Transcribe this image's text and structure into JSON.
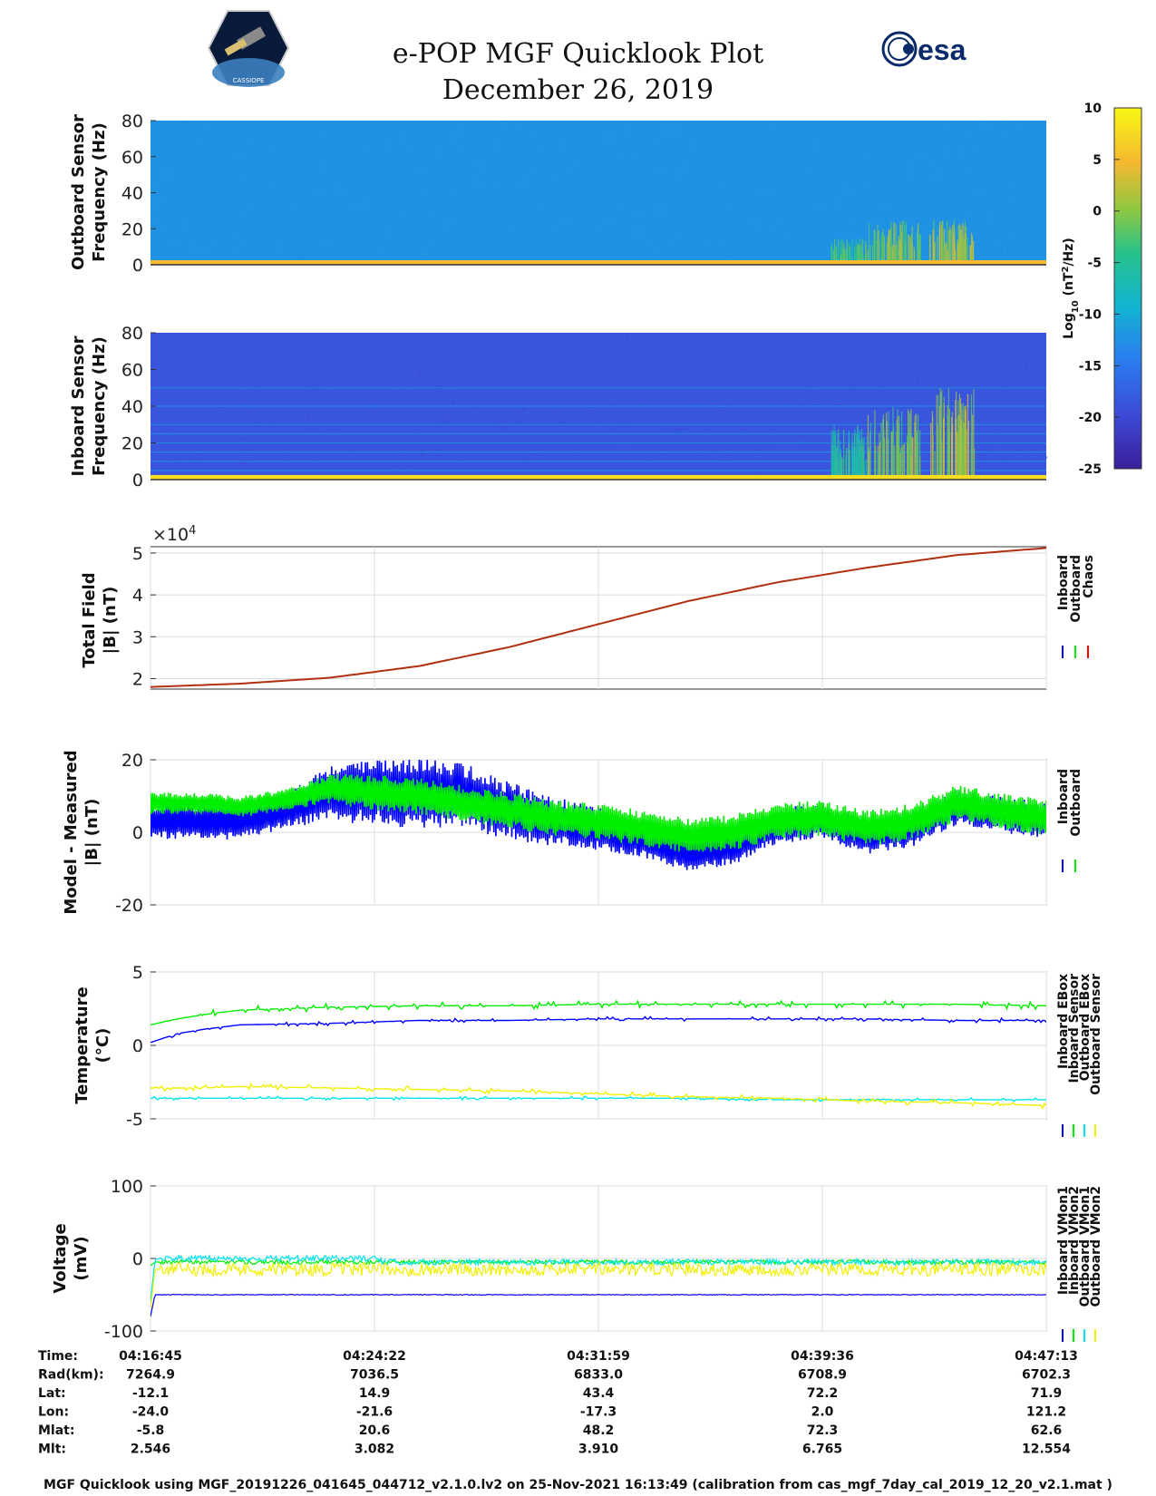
{
  "header": {
    "title": "e-POP MGF Quicklook Plot",
    "date": "December 26, 2019",
    "esa_logo_text": "esa",
    "cassiope_logo_text": "CASSIOPE"
  },
  "colors": {
    "inboard": "#0000ff",
    "outboard": "#00ee00",
    "chaos": "#ff0000",
    "model_line": "#b03010",
    "cyan": "#00e5ee",
    "yellow": "#f0f000",
    "spec_bg_outboard": "#1f78e0",
    "spec_bg_inboard": "#3440c8"
  },
  "colorbar": {
    "label_base": "Log",
    "label_sub": "10",
    "label_unit": " (nT",
    "label_sup": "2",
    "label_end": "/Hz)",
    "ticks": [
      "10",
      "5",
      "0",
      "-5",
      "-10",
      "-15",
      "-20",
      "-25"
    ],
    "range": [
      -25,
      10
    ]
  },
  "chart_data": [
    {
      "type": "heatmap",
      "name": "outboard-spectrogram",
      "ylabel_line1": "Outboard Sensor",
      "ylabel_line2": "Frequency (Hz)",
      "ylim": [
        0,
        80
      ],
      "yticks": [
        "80",
        "60",
        "40",
        "20",
        "0"
      ],
      "background_level": -13,
      "band_level_0_2hz": 5,
      "bursts": [
        {
          "t_frac_start": 0.76,
          "t_frac_end": 0.8,
          "fmax_hz": 15,
          "level": 0
        },
        {
          "t_frac_start": 0.8,
          "t_frac_end": 0.86,
          "fmax_hz": 25,
          "level": 3
        },
        {
          "t_frac_start": 0.87,
          "t_frac_end": 0.92,
          "fmax_hz": 25,
          "level": 5
        }
      ]
    },
    {
      "type": "heatmap",
      "name": "inboard-spectrogram",
      "ylabel_line1": "Inboard Sensor",
      "ylabel_line2": "Frequency (Hz)",
      "ylim": [
        0,
        80
      ],
      "yticks": [
        "80",
        "60",
        "40",
        "20",
        "0"
      ],
      "background_level": -19,
      "band_level_0_2hz": 8,
      "harmonic_lines_hz": [
        5,
        10,
        15,
        20,
        25,
        30,
        40,
        50
      ],
      "bursts": [
        {
          "t_frac_start": 0.76,
          "t_frac_end": 0.8,
          "fmax_hz": 30,
          "level": -2
        },
        {
          "t_frac_start": 0.8,
          "t_frac_end": 0.86,
          "fmax_hz": 40,
          "level": 3
        },
        {
          "t_frac_start": 0.87,
          "t_frac_end": 0.92,
          "fmax_hz": 50,
          "level": 5
        }
      ]
    },
    {
      "type": "line",
      "name": "total-field",
      "ylabel_line1": "Total Field",
      "ylabel_line2": "|B| (nT)",
      "scale_label": "×10",
      "scale_exp": "4",
      "ylim": [
        1.75,
        5.15
      ],
      "yticks": [
        "5",
        "4",
        "3",
        "2"
      ],
      "x_frac": [
        0,
        0.1,
        0.2,
        0.3,
        0.4,
        0.5,
        0.6,
        0.7,
        0.8,
        0.9,
        1.0
      ],
      "series": [
        {
          "name": "Chaos",
          "values": [
            1.8,
            1.88,
            2.02,
            2.3,
            2.75,
            3.3,
            3.85,
            4.3,
            4.65,
            4.95,
            5.12
          ]
        }
      ],
      "legend": [
        "Inboard",
        "Outboard",
        "Chaos"
      ]
    },
    {
      "type": "line",
      "name": "model-minus-measured",
      "ylabel_line1": "Model - Measured",
      "ylabel_line2": "|B| (nT)",
      "ylim": [
        -20,
        20
      ],
      "yticks": [
        "20",
        "0",
        "-20"
      ],
      "x_frac": [
        0,
        0.05,
        0.1,
        0.15,
        0.2,
        0.25,
        0.3,
        0.35,
        0.4,
        0.45,
        0.5,
        0.55,
        0.6,
        0.65,
        0.7,
        0.75,
        0.8,
        0.85,
        0.9,
        0.95,
        1.0
      ],
      "series": [
        {
          "name": "Inboard",
          "values": [
            3,
            3,
            3,
            6,
            11,
            11,
            11,
            10,
            6,
            3,
            1,
            -2,
            -6,
            -4,
            2,
            3,
            -1,
            1,
            7,
            5,
            3
          ]
        },
        {
          "name": "Outboard",
          "values": [
            8,
            8,
            7,
            9,
            12,
            11,
            10,
            8,
            6,
            4,
            3,
            1,
            -1,
            0,
            3,
            4,
            1,
            3,
            8,
            6,
            4
          ]
        }
      ],
      "inboard_amplitude": [
        5,
        5,
        5,
        5,
        8,
        9,
        10,
        9,
        8,
        7,
        6,
        5,
        5,
        5,
        5,
        5,
        5,
        5,
        5,
        5,
        5
      ],
      "outboard_amplitude": [
        3,
        3,
        3,
        3,
        4,
        5,
        5,
        5,
        5,
        5,
        5,
        5,
        5,
        5,
        5,
        5,
        5,
        5,
        5,
        5,
        5
      ],
      "legend": [
        "Inboard",
        "Outboard"
      ]
    },
    {
      "type": "line",
      "name": "temperature",
      "ylabel_line1": "Temperature",
      "ylabel_line2": "(°C)",
      "ylim": [
        -5,
        5
      ],
      "yticks": [
        "5",
        "0",
        "-5"
      ],
      "x_frac": [
        0,
        0.03,
        0.06,
        0.1,
        0.2,
        0.3,
        0.4,
        0.5,
        0.6,
        0.7,
        0.8,
        0.9,
        1.0
      ],
      "series": [
        {
          "name": "Inboard EBox",
          "values": [
            0.2,
            0.8,
            1.1,
            1.4,
            1.5,
            1.7,
            1.7,
            1.8,
            1.8,
            1.8,
            1.8,
            1.7,
            1.7
          ]
        },
        {
          "name": "Inboard Sensor",
          "values": [
            1.4,
            1.8,
            2.1,
            2.4,
            2.6,
            2.7,
            2.7,
            2.8,
            2.8,
            2.8,
            2.8,
            2.8,
            2.7
          ]
        },
        {
          "name": "Outboard EBox",
          "values": [
            -3.6,
            -3.6,
            -3.6,
            -3.6,
            -3.6,
            -3.6,
            -3.6,
            -3.6,
            -3.6,
            -3.7,
            -3.7,
            -3.7,
            -3.7
          ]
        },
        {
          "name": "Outboard Sensor",
          "values": [
            -2.9,
            -2.9,
            -2.9,
            -2.8,
            -2.9,
            -3.0,
            -3.1,
            -3.3,
            -3.5,
            -3.6,
            -3.8,
            -3.9,
            -4.1
          ]
        }
      ],
      "legend": [
        "Inboard EBox",
        "Inboard Sensor",
        "Outboard EBox",
        "Outboard Sensor"
      ]
    },
    {
      "type": "line",
      "name": "voltage",
      "ylabel_line1": "Voltage",
      "ylabel_line2": "(mV)",
      "ylim": [
        -100,
        100
      ],
      "yticks": [
        "100",
        "0",
        "-100"
      ],
      "x_frac": [
        0,
        0.005,
        0.01,
        0.1,
        0.25,
        0.26,
        0.5,
        0.75,
        1.0
      ],
      "series": [
        {
          "name": "Inboard VMon1",
          "values": [
            -80,
            -50,
            -50,
            -50,
            -50,
            -50,
            -50,
            -50,
            -50
          ]
        },
        {
          "name": "Inboard VMon2",
          "values": [
            -10,
            -5,
            -5,
            -5,
            -5,
            -5,
            -5,
            -5,
            -5
          ]
        },
        {
          "name": "Outboard VMon1",
          "values": [
            -60,
            -2,
            0,
            0,
            0,
            -5,
            -5,
            -5,
            -5
          ]
        },
        {
          "name": "Outboard VMon2",
          "values": [
            -70,
            -15,
            -15,
            -15,
            -15,
            -15,
            -15,
            -15,
            -15
          ]
        }
      ],
      "legend": [
        "Inboard VMon1",
        "Inboard VMon2",
        "Outboard VMon1",
        "Outboard VMon2"
      ]
    }
  ],
  "orbit_table": {
    "row_labels": [
      "Time:",
      "Rad(km):",
      "Lat:",
      "Lon:",
      "Mlat:",
      "Mlt:"
    ],
    "columns": [
      [
        "04:16:45",
        "7264.9",
        "-12.1",
        "-24.0",
        "-5.8",
        "2.546"
      ],
      [
        "04:24:22",
        "7036.5",
        "14.9",
        "-21.6",
        "20.6",
        "3.082"
      ],
      [
        "04:31:59",
        "6833.0",
        "43.4",
        "-17.3",
        "48.2",
        "3.910"
      ],
      [
        "04:39:36",
        "6708.9",
        "72.2",
        "2.0",
        "72.3",
        "6.765"
      ],
      [
        "04:47:13",
        "6702.3",
        "71.9",
        "121.2",
        "62.6",
        "12.554"
      ]
    ]
  },
  "footer": "MGF Quicklook using MGF_20191226_041645_044712_v2.1.0.lv2 on 25-Nov-2021 16:13:49 (calibration from cas_mgf_7day_cal_2019_12_20_v2.1.mat )"
}
